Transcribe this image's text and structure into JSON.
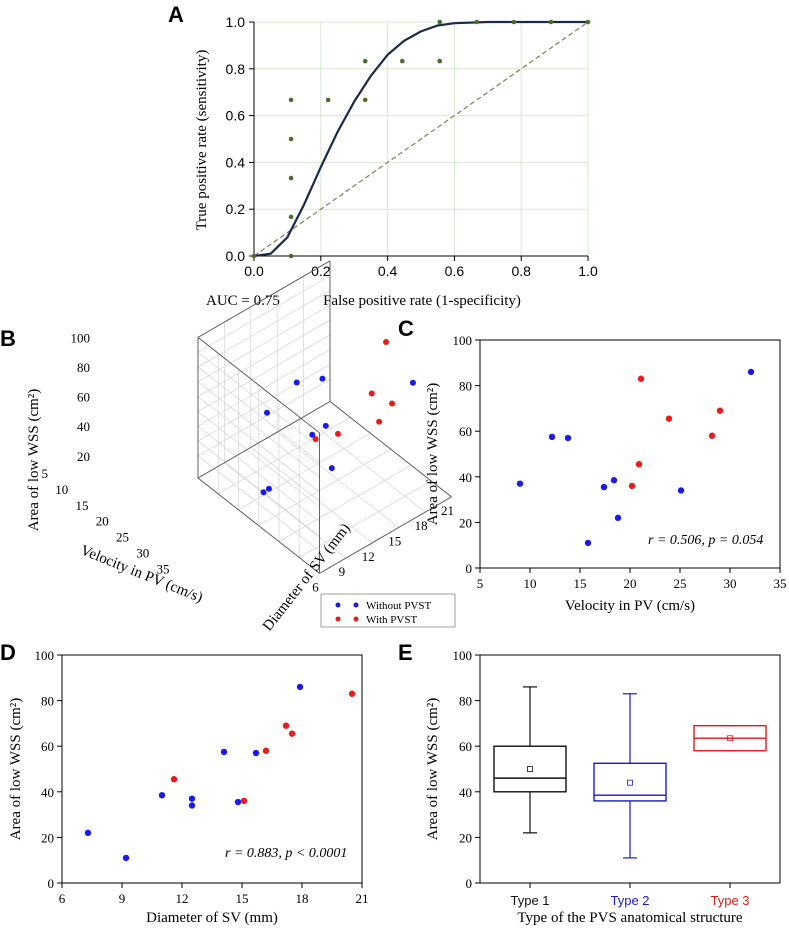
{
  "chart_data": [
    {
      "id": "A",
      "panel_label": "A",
      "type": "line",
      "title": "",
      "xlabel": "False positive rate (1-specificity)",
      "ylabel": "True positive rate (sensitivity)",
      "xlim": [
        0,
        1
      ],
      "ylim": [
        0,
        1
      ],
      "xticks": [
        "0.0",
        "0.2",
        "0.4",
        "0.6",
        "0.8",
        "1.0"
      ],
      "yticks": [
        "0.0",
        "0.2",
        "0.4",
        "0.6",
        "0.8",
        "1.0"
      ],
      "annotation": "AUC = 0.75",
      "colors": {
        "curve": "#1c2a4a",
        "points": "#4f6b2a",
        "diagonal": "#8a7a5a",
        "grid": "#d9e8d0"
      },
      "points": [
        {
          "x": 0.0,
          "y": 0.0
        },
        {
          "x": 0.111,
          "y": 0.0
        },
        {
          "x": 0.111,
          "y": 0.167
        },
        {
          "x": 0.111,
          "y": 0.333
        },
        {
          "x": 0.111,
          "y": 0.5
        },
        {
          "x": 0.111,
          "y": 0.667
        },
        {
          "x": 0.222,
          "y": 0.667
        },
        {
          "x": 0.333,
          "y": 0.667
        },
        {
          "x": 0.333,
          "y": 0.833
        },
        {
          "x": 0.444,
          "y": 0.833
        },
        {
          "x": 0.556,
          "y": 0.833
        },
        {
          "x": 0.556,
          "y": 1.0
        },
        {
          "x": 0.667,
          "y": 1.0
        },
        {
          "x": 0.778,
          "y": 1.0
        },
        {
          "x": 0.889,
          "y": 1.0
        },
        {
          "x": 1.0,
          "y": 1.0
        }
      ],
      "fit_curve": [
        {
          "x": 0.0,
          "y": 0.0
        },
        {
          "x": 0.05,
          "y": 0.01
        },
        {
          "x": 0.1,
          "y": 0.08
        },
        {
          "x": 0.15,
          "y": 0.22
        },
        {
          "x": 0.2,
          "y": 0.38
        },
        {
          "x": 0.25,
          "y": 0.53
        },
        {
          "x": 0.3,
          "y": 0.66
        },
        {
          "x": 0.35,
          "y": 0.77
        },
        {
          "x": 0.4,
          "y": 0.86
        },
        {
          "x": 0.45,
          "y": 0.92
        },
        {
          "x": 0.5,
          "y": 0.96
        },
        {
          "x": 0.55,
          "y": 0.985
        },
        {
          "x": 0.6,
          "y": 0.995
        },
        {
          "x": 0.7,
          "y": 1.0
        },
        {
          "x": 0.8,
          "y": 1.0
        },
        {
          "x": 0.9,
          "y": 1.0
        },
        {
          "x": 1.0,
          "y": 1.0
        }
      ]
    },
    {
      "id": "B",
      "panel_label": "B",
      "type": "scatter",
      "title": "",
      "xlabel": "Velocity in PV (cm/s)",
      "ylabel": "Diameter of SV (mm)",
      "zlabel": "Area of low WSS (cm²)",
      "xticks": [
        "5",
        "10",
        "15",
        "20",
        "25",
        "30",
        "35"
      ],
      "yticks": [
        "6",
        "9",
        "12",
        "15",
        "18",
        "21"
      ],
      "zticks": [
        "20",
        "40",
        "60",
        "80",
        "100"
      ],
      "series": [
        {
          "name": "Without PVST",
          "color": "#1a1aee",
          "points": [
            {
              "v": 32,
              "d": 18,
              "a": 86
            },
            {
              "v": 12,
              "d": 14,
              "a": 57
            },
            {
              "v": 14,
              "d": 16,
              "a": 57
            },
            {
              "v": 9,
              "d": 12,
              "a": 37
            },
            {
              "v": 17,
              "d": 15,
              "a": 35
            },
            {
              "v": 18,
              "d": 13,
              "a": 38
            },
            {
              "v": 25,
              "d": 12,
              "a": 34
            },
            {
              "v": 16,
              "d": 9,
              "a": 11
            },
            {
              "v": 19,
              "d": 7,
              "a": 22
            }
          ]
        },
        {
          "name": "With PVST",
          "color": "#ee1a1a",
          "points": [
            {
              "v": 21,
              "d": 20,
              "a": 83
            },
            {
              "v": 24,
              "d": 17,
              "a": 65
            },
            {
              "v": 29,
              "d": 17,
              "a": 69
            },
            {
              "v": 28,
              "d": 16,
              "a": 58
            },
            {
              "v": 21,
              "d": 12,
              "a": 45
            },
            {
              "v": 20,
              "d": 15,
              "a": 36
            }
          ]
        }
      ],
      "legend": [
        "Without PVST",
        "With PVST"
      ]
    },
    {
      "id": "C",
      "panel_label": "C",
      "type": "scatter",
      "title": "",
      "xlabel": "Velocity in PV (cm/s)",
      "ylabel": "Area of low WSS (cm²)",
      "xlim": [
        5,
        35
      ],
      "ylim": [
        0,
        100
      ],
      "xticks": [
        "5",
        "10",
        "15",
        "20",
        "25",
        "30",
        "35"
      ],
      "yticks": [
        "0",
        "20",
        "40",
        "60",
        "80",
        "100"
      ],
      "stats_r": "r = 0.506, ",
      "stats_p": "p = 0.054",
      "series": [
        {
          "name": "Without PVST",
          "color": "#1a1aee",
          "points": [
            [
              9,
              37
            ],
            [
              12.2,
              57.5
            ],
            [
              13.8,
              57
            ],
            [
              15.8,
              11
            ],
            [
              17.4,
              35.5
            ],
            [
              18.4,
              38.5
            ],
            [
              18.8,
              22
            ],
            [
              25.1,
              34
            ],
            [
              32.1,
              86
            ]
          ]
        },
        {
          "name": "With PVST",
          "color": "#ee1a1a",
          "points": [
            [
              20.2,
              36
            ],
            [
              20.9,
              45.5
            ],
            [
              21.1,
              83
            ],
            [
              23.9,
              65.5
            ],
            [
              28.2,
              58
            ],
            [
              29,
              69
            ]
          ]
        }
      ]
    },
    {
      "id": "D",
      "panel_label": "D",
      "type": "scatter",
      "title": "",
      "xlabel": "Diameter of SV (mm)",
      "ylabel": "Area of low WSS (cm²)",
      "xlim": [
        6,
        21
      ],
      "ylim": [
        0,
        100
      ],
      "xticks": [
        "6",
        "9",
        "12",
        "15",
        "18",
        "21"
      ],
      "yticks": [
        "0",
        "20",
        "40",
        "60",
        "80",
        "100"
      ],
      "stats_r": "r = 0.883, ",
      "stats_p": "p < 0.0001",
      "series": [
        {
          "name": "Without PVST",
          "color": "#1a1aee",
          "points": [
            [
              7.3,
              22
            ],
            [
              9.2,
              11
            ],
            [
              11,
              38.5
            ],
            [
              12.5,
              37
            ],
            [
              12.5,
              34
            ],
            [
              14.1,
              57.5
            ],
            [
              14.8,
              35.5
            ],
            [
              15.7,
              57
            ],
            [
              17.9,
              86
            ]
          ]
        },
        {
          "name": "With PVST",
          "color": "#ee1a1a",
          "points": [
            [
              11.6,
              45.5
            ],
            [
              15.1,
              36
            ],
            [
              16.2,
              58
            ],
            [
              17.2,
              69
            ],
            [
              17.5,
              65.5
            ],
            [
              20.5,
              83
            ]
          ]
        }
      ]
    },
    {
      "id": "E",
      "panel_label": "E",
      "type": "box",
      "title": "",
      "xlabel": "Type of the PVS anatomical structure",
      "ylabel": "Area of low WSS (cm²)",
      "ylim": [
        0,
        100
      ],
      "yticks": [
        "0",
        "20",
        "40",
        "60",
        "80",
        "100"
      ],
      "categories": [
        "Type 1",
        "Type 2",
        "Type 3"
      ],
      "boxes": [
        {
          "name": "Type 1",
          "color": "#111111",
          "min": 22,
          "q1": 40,
          "median": 46,
          "q3": 60,
          "max": 86,
          "mean": 50
        },
        {
          "name": "Type 2",
          "color": "#1a1ad0",
          "min": 11,
          "q1": 36,
          "median": 38.5,
          "q3": 52.5,
          "max": 83,
          "mean": 44
        },
        {
          "name": "Type 3",
          "color": "#e01a1a",
          "min": 58,
          "q1": 58,
          "median": 63.5,
          "q3": 69,
          "max": 69,
          "mean": 63.5
        }
      ]
    }
  ]
}
